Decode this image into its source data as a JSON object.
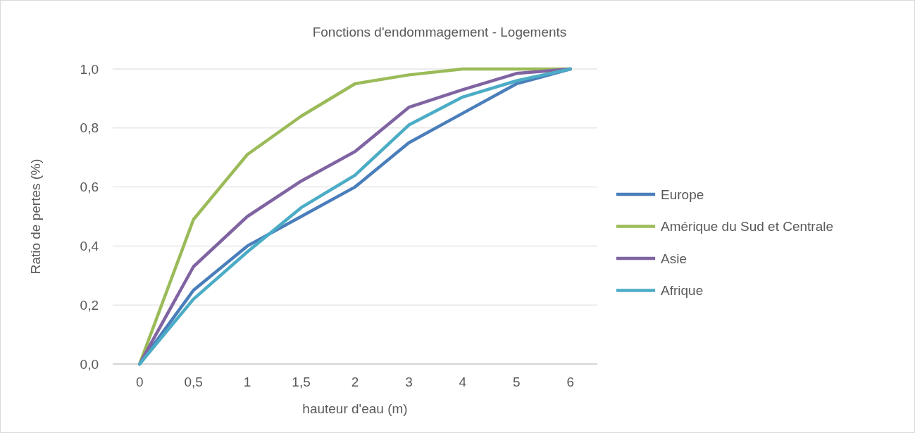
{
  "chart_data": {
    "type": "line",
    "title": "Fonctions d'endommagement - Logements",
    "xlabel": "hauteur d'eau (m)",
    "ylabel": "Ratio de pertes (%)",
    "categories": [
      "0",
      "0,5",
      "1",
      "1,5",
      "2",
      "3",
      "4",
      "5",
      "6"
    ],
    "series": [
      {
        "name": "Europe",
        "color": "#4a7ebb",
        "values": [
          0,
          0.25,
          0.4,
          0.5,
          0.6,
          0.75,
          0.85,
          0.95,
          1.0
        ]
      },
      {
        "name": "Amérique du Sud et Centrale",
        "color": "#9bbb59",
        "values": [
          0,
          0.49,
          0.71,
          0.84,
          0.95,
          0.98,
          1.0,
          1.0,
          1.0
        ]
      },
      {
        "name": "Asie",
        "color": "#8064a2",
        "values": [
          0,
          0.33,
          0.5,
          0.62,
          0.72,
          0.87,
          0.93,
          0.985,
          1.0
        ]
      },
      {
        "name": "Afrique",
        "color": "#4bacc6",
        "values": [
          0,
          0.22,
          0.38,
          0.53,
          0.64,
          0.81,
          0.905,
          0.96,
          1.0
        ]
      }
    ],
    "ylim": [
      0,
      1
    ],
    "yticks": [
      {
        "value": 0,
        "label": "0,0"
      },
      {
        "value": 0.2,
        "label": "0,2"
      },
      {
        "value": 0.4,
        "label": "0,4"
      },
      {
        "value": 0.6,
        "label": "0,6"
      },
      {
        "value": 0.8,
        "label": "0,8"
      },
      {
        "value": 1,
        "label": "1,0"
      }
    ],
    "grid": "y",
    "legend": "right",
    "marker": "none",
    "line_style": "solid"
  }
}
